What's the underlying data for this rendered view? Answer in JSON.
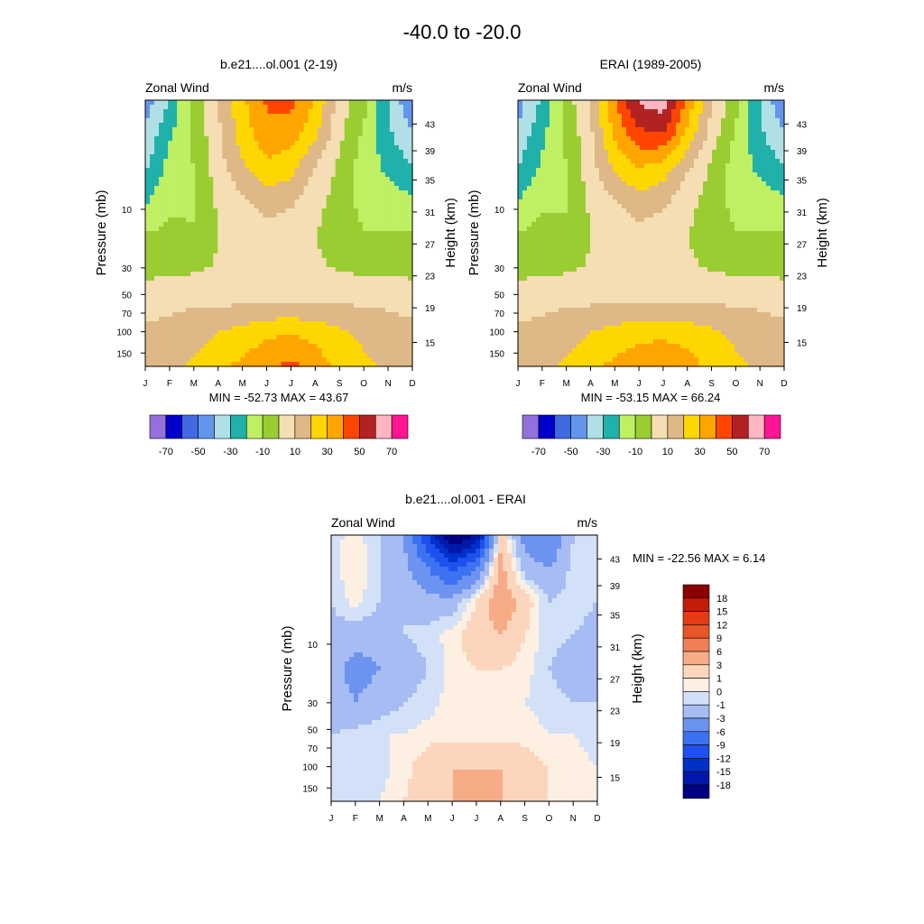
{
  "figure": {
    "title": "-40.0 to -20.0"
  },
  "colors": {
    "abs_levels": [
      -70,
      -60,
      -50,
      -40,
      -30,
      -20,
      -10,
      0,
      10,
      20,
      30,
      40,
      50,
      60,
      70
    ],
    "abs_fill": [
      "#9370db",
      "#0000cd",
      "#4169e1",
      "#6495ed",
      "#b0e0e6",
      "#20b2aa",
      "#bfef63",
      "#9acd32",
      "#f5deb3",
      "#deb887",
      "#ffd700",
      "#ffa500",
      "#ff4500",
      "#b22222",
      "#ffb6c1",
      "#ff1493"
    ],
    "diff_levels": [
      -18,
      -15,
      -12,
      -9,
      -6,
      -3,
      -1,
      0,
      1,
      3,
      6,
      9,
      12,
      15,
      18
    ],
    "diff_fill": [
      "#000080",
      "#0018aa",
      "#0030cc",
      "#1e50ee",
      "#3c72f2",
      "#6d93f0",
      "#a6bcf2",
      "#d2e1f7",
      "#fdf0e2",
      "#fbd6bd",
      "#f7ab87",
      "#f07f56",
      "#ea5525",
      "#e63b12",
      "#c21d07",
      "#8b0000"
    ]
  },
  "panels": [
    {
      "title": "b.e21....ol.001 (2-19)",
      "left_label": "Zonal Wind",
      "right_label": "m/s",
      "ylabel": "Pressure (mb)",
      "y2label": "Height (km)",
      "minmax": "MIN = -52.73  MAX =  43.67",
      "colorbar_ticks": [
        "-70",
        "-50",
        "-30",
        "-10",
        "10",
        "30",
        "50",
        "70"
      ]
    },
    {
      "title": "ERAI (1989-2005)",
      "left_label": "Zonal Wind",
      "right_label": "m/s",
      "ylabel": "Pressure (mb)",
      "y2label": "Height (km)",
      "minmax": "MIN = -53.15  MAX =  66.24",
      "colorbar_ticks": [
        "-70",
        "-50",
        "-30",
        "-10",
        "10",
        "30",
        "50",
        "70"
      ]
    },
    {
      "title": "b.e21....ol.001 - ERAI",
      "left_label": "Zonal Wind",
      "right_label": "m/s",
      "ylabel": "Pressure (mb)",
      "y2label": "Height (km)",
      "minmax": "MIN = -22.56  MAX =   6.14",
      "colorbar_ticks": [
        "18",
        "15",
        "12",
        "9",
        "6",
        "3",
        "1",
        "0",
        "-1",
        "-3",
        "-6",
        "-9",
        "-12",
        "-15",
        "-18"
      ]
    }
  ],
  "chart_data": [
    {
      "type": "heatmap",
      "title": "b.e21....ol.001 (2-19)",
      "xlabel": "",
      "ylabel": "Pressure (mb)",
      "y2label": "Height (km)",
      "x_ticks": [
        "J",
        "F",
        "M",
        "A",
        "M",
        "J",
        "J",
        "A",
        "S",
        "O",
        "N",
        "D"
      ],
      "y_ticks": [
        "10",
        "30",
        "50",
        "70",
        "100",
        "150"
      ],
      "y2_ticks": [
        "43",
        "39",
        "35",
        "31",
        "27",
        "23",
        "19",
        "15"
      ],
      "rows_top_to_bottom": [
        [
          -45,
          -30,
          -5,
          10,
          28,
          42,
          43,
          30,
          5,
          -5,
          -30,
          -50
        ],
        [
          -38,
          -22,
          -8,
          8,
          25,
          36,
          35,
          22,
          3,
          -12,
          -28,
          -40
        ],
        [
          -32,
          -16,
          -10,
          6,
          18,
          28,
          24,
          10,
          -2,
          -15,
          -22,
          -30
        ],
        [
          -22,
          -12,
          -12,
          2,
          8,
          16,
          12,
          3,
          -4,
          -14,
          -16,
          -18
        ],
        [
          -10,
          -8,
          -9,
          0,
          3,
          5,
          4,
          0,
          -3,
          -10,
          -10,
          -10
        ],
        [
          -4,
          -3,
          -2,
          1,
          2,
          2,
          2,
          1,
          -1,
          -3,
          -4,
          -4
        ],
        [
          6,
          7,
          8,
          7,
          8,
          8,
          8,
          8,
          8,
          8,
          8,
          7
        ],
        [
          12,
          13,
          16,
          20,
          24,
          28,
          30,
          27,
          22,
          18,
          14,
          12
        ],
        [
          14,
          16,
          22,
          28,
          32,
          38,
          43,
          35,
          27,
          22,
          18,
          15
        ]
      ]
    },
    {
      "type": "heatmap",
      "title": "ERAI (1989-2005)",
      "xlabel": "",
      "ylabel": "Pressure (mb)",
      "y2label": "Height (km)",
      "x_ticks": [
        "J",
        "F",
        "M",
        "A",
        "M",
        "J",
        "J",
        "A",
        "S",
        "O",
        "N",
        "D"
      ],
      "y_ticks": [
        "10",
        "30",
        "50",
        "70",
        "100",
        "150"
      ],
      "y2_ticks": [
        "43",
        "39",
        "35",
        "31",
        "27",
        "23",
        "19",
        "15"
      ],
      "rows_top_to_bottom": [
        [
          -45,
          -28,
          -5,
          12,
          40,
          62,
          66,
          38,
          10,
          -5,
          -30,
          -50
        ],
        [
          -38,
          -22,
          -8,
          8,
          32,
          48,
          50,
          28,
          6,
          -12,
          -28,
          -40
        ],
        [
          -30,
          -18,
          -10,
          6,
          22,
          30,
          26,
          12,
          -2,
          -15,
          -22,
          -30
        ],
        [
          -20,
          -12,
          -11,
          2,
          10,
          17,
          13,
          3,
          -4,
          -14,
          -16,
          -18
        ],
        [
          -10,
          -7,
          -8,
          0,
          3,
          6,
          4,
          0,
          -3,
          -10,
          -10,
          -10
        ],
        [
          -4,
          -3,
          -2,
          1,
          2,
          2,
          2,
          1,
          -1,
          -3,
          -4,
          -4
        ],
        [
          6,
          7,
          8,
          8,
          8,
          9,
          9,
          9,
          8,
          8,
          8,
          7
        ],
        [
          12,
          13,
          16,
          20,
          24,
          27,
          28,
          26,
          22,
          18,
          14,
          12
        ],
        [
          14,
          16,
          22,
          28,
          32,
          36,
          38,
          34,
          27,
          22,
          18,
          15
        ]
      ]
    },
    {
      "type": "heatmap",
      "title": "b.e21....ol.001 - ERAI",
      "xlabel": "",
      "ylabel": "Pressure (mb)",
      "y2label": "Height (km)",
      "x_ticks": [
        "J",
        "F",
        "M",
        "A",
        "M",
        "J",
        "J",
        "A",
        "S",
        "O",
        "N",
        "D"
      ],
      "y_ticks": [
        "10",
        "30",
        "50",
        "70",
        "100",
        "150"
      ],
      "y2_ticks": [
        "43",
        "39",
        "35",
        "31",
        "27",
        "23",
        "19",
        "15"
      ],
      "rows_top_to_bottom": [
        [
          -0.5,
          0.5,
          -1,
          -3,
          -12,
          -22,
          -18,
          2,
          -4,
          -6,
          -1,
          -1
        ],
        [
          -0.5,
          1,
          -1,
          -2,
          -6,
          -10,
          -6,
          4,
          -2,
          -3,
          -0.5,
          -0.5
        ],
        [
          -1,
          0.5,
          -1,
          -1,
          -2,
          -2,
          1,
          5,
          2,
          -1,
          -0.5,
          -1
        ],
        [
          -1.5,
          -2,
          -2,
          -1,
          -0.5,
          0.5,
          2,
          3,
          1,
          -0.5,
          -1,
          -1.5
        ],
        [
          -2,
          -4,
          -3,
          -2,
          -1,
          0.5,
          1,
          1,
          0.5,
          -1,
          -2,
          -1.5
        ],
        [
          -2,
          -3,
          -2,
          -1,
          -0.5,
          0.5,
          0.5,
          0.5,
          0,
          -0.5,
          -1,
          -1
        ],
        [
          -1,
          -0.5,
          0,
          0,
          0.5,
          0.5,
          0.5,
          0.5,
          0.5,
          0,
          0,
          -0.5
        ],
        [
          -1,
          -1,
          -0.5,
          0.5,
          2,
          3,
          3,
          3,
          2,
          1,
          0.5,
          0
        ],
        [
          -1,
          -1,
          0,
          1,
          2,
          3,
          4,
          3,
          2,
          1,
          0.5,
          0
        ]
      ]
    }
  ]
}
